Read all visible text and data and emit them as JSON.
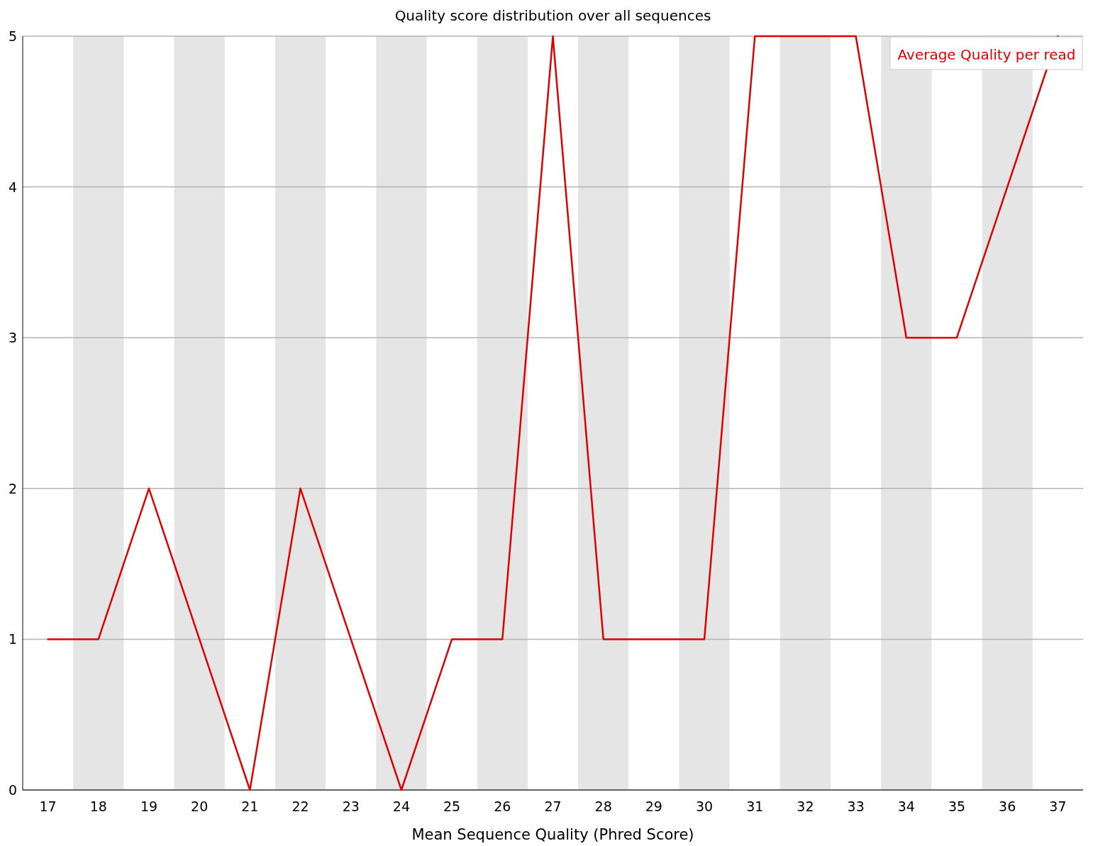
{
  "chart_data": {
    "type": "line",
    "title": "Quality score distribution over all sequences",
    "xlabel": "Mean Sequence Quality (Phred Score)",
    "x": [
      17,
      18,
      19,
      20,
      21,
      22,
      23,
      24,
      25,
      26,
      27,
      28,
      29,
      30,
      31,
      32,
      33,
      34,
      35,
      36,
      37
    ],
    "series": [
      {
        "name": "Average Quality per read",
        "color": "#e00000",
        "values": [
          1,
          1,
          2,
          1,
          0,
          2,
          1,
          0,
          1,
          1,
          5,
          1,
          1,
          1,
          5,
          5,
          5,
          3,
          3,
          4,
          5
        ]
      }
    ],
    "xlim": [
      16.5,
      37.5
    ],
    "xticks": [
      17,
      18,
      19,
      20,
      21,
      22,
      23,
      24,
      25,
      26,
      27,
      28,
      29,
      30,
      31,
      32,
      33,
      34,
      35,
      36,
      37
    ],
    "ylim": [
      0,
      5
    ],
    "yticks": [
      0,
      1,
      2,
      3,
      4,
      5
    ],
    "bands": [
      {
        "axis": "x",
        "from": 17.5,
        "to": 18.5,
        "color": "#e5e5e5"
      },
      {
        "axis": "x",
        "from": 19.5,
        "to": 20.5,
        "color": "#e5e5e5"
      },
      {
        "axis": "x",
        "from": 21.5,
        "to": 22.5,
        "color": "#e5e5e5"
      },
      {
        "axis": "x",
        "from": 23.5,
        "to": 24.5,
        "color": "#e5e5e5"
      },
      {
        "axis": "x",
        "from": 25.5,
        "to": 26.5,
        "color": "#e5e5e5"
      },
      {
        "axis": "x",
        "from": 27.5,
        "to": 28.5,
        "color": "#e5e5e5"
      },
      {
        "axis": "x",
        "from": 29.5,
        "to": 30.5,
        "color": "#e5e5e5"
      },
      {
        "axis": "x",
        "from": 31.5,
        "to": 32.5,
        "color": "#e5e5e5"
      },
      {
        "axis": "x",
        "from": 33.5,
        "to": 34.5,
        "color": "#e5e5e5"
      },
      {
        "axis": "x",
        "from": 35.5,
        "to": 36.5,
        "color": "#e5e5e5"
      }
    ],
    "grid": "y",
    "legend": "top right",
    "line_style": "solid"
  }
}
